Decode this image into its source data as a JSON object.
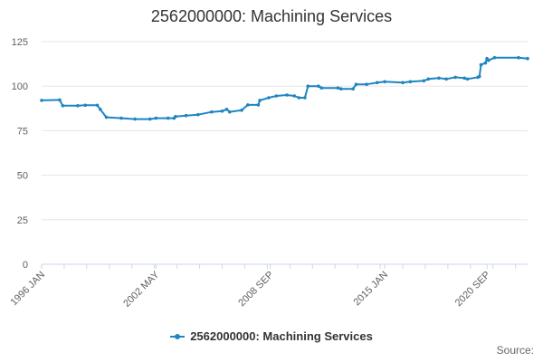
{
  "chart_data": {
    "type": "line",
    "title": "2562000000: Machining Services",
    "xlabel": "",
    "ylabel": "",
    "x_tick_labels": [
      "1996 JAN",
      "2002 MAY",
      "2008 SEP",
      "2015 JAN",
      "2020 SEP"
    ],
    "x_tick_dates": [
      "1996-01",
      "2002-05",
      "2008-09",
      "2015-01",
      "2020-09"
    ],
    "ylim": [
      0,
      125
    ],
    "y_ticks": [
      0,
      25,
      50,
      75,
      100,
      125
    ],
    "grid": true,
    "legend_position": "bottom-center",
    "series": [
      {
        "name": "2562000000: Machining Services",
        "color": "#1f85c2",
        "points": [
          [
            "1996-01",
            92.0
          ],
          [
            "1997-01",
            92.3
          ],
          [
            "1997-03",
            89.0
          ],
          [
            "1998-01",
            89.0
          ],
          [
            "1998-06",
            89.3
          ],
          [
            "1999-02",
            89.3
          ],
          [
            "1999-04",
            87.0
          ],
          [
            "1999-08",
            82.5
          ],
          [
            "2000-06",
            82.0
          ],
          [
            "2001-03",
            81.5
          ],
          [
            "2002-01",
            81.5
          ],
          [
            "2002-05",
            82.0
          ],
          [
            "2003-01",
            82.0
          ],
          [
            "2003-05",
            82.0
          ],
          [
            "2003-06",
            83.0
          ],
          [
            "2004-01",
            83.5
          ],
          [
            "2004-09",
            84.0
          ],
          [
            "2005-06",
            85.5
          ],
          [
            "2006-01",
            86.0
          ],
          [
            "2006-04",
            87.0
          ],
          [
            "2006-06",
            85.5
          ],
          [
            "2007-02",
            86.5
          ],
          [
            "2007-06",
            89.5
          ],
          [
            "2008-01",
            89.5
          ],
          [
            "2008-02",
            92.0
          ],
          [
            "2008-08",
            93.5
          ],
          [
            "2009-01",
            94.5
          ],
          [
            "2009-08",
            95.0
          ],
          [
            "2010-01",
            94.5
          ],
          [
            "2010-04",
            93.5
          ],
          [
            "2010-08",
            93.5
          ],
          [
            "2010-10",
            100.0
          ],
          [
            "2011-05",
            100.0
          ],
          [
            "2011-07",
            99.0
          ],
          [
            "2012-06",
            99.0
          ],
          [
            "2012-08",
            98.5
          ],
          [
            "2013-04",
            98.5
          ],
          [
            "2013-06",
            101.0
          ],
          [
            "2014-01",
            101.0
          ],
          [
            "2014-08",
            102.0
          ],
          [
            "2015-01",
            102.5
          ],
          [
            "2016-01",
            102.0
          ],
          [
            "2016-06",
            102.5
          ],
          [
            "2017-03",
            103.0
          ],
          [
            "2017-06",
            104.0
          ],
          [
            "2018-01",
            104.5
          ],
          [
            "2018-06",
            104.0
          ],
          [
            "2018-12",
            105.0
          ],
          [
            "2019-06",
            104.5
          ],
          [
            "2019-08",
            104.0
          ],
          [
            "2020-03",
            105.0
          ],
          [
            "2020-04",
            105.5
          ],
          [
            "2020-05",
            112.0
          ],
          [
            "2020-08",
            113.0
          ],
          [
            "2020-09",
            115.5
          ],
          [
            "2020-10",
            114.5
          ],
          [
            "2021-02",
            116.0
          ],
          [
            "2022-06",
            116.0
          ],
          [
            "2022-12",
            115.5
          ]
        ]
      }
    ]
  },
  "legend": {
    "label": "2562000000: Machining Services"
  },
  "footer": {
    "source_label": "Source:"
  }
}
